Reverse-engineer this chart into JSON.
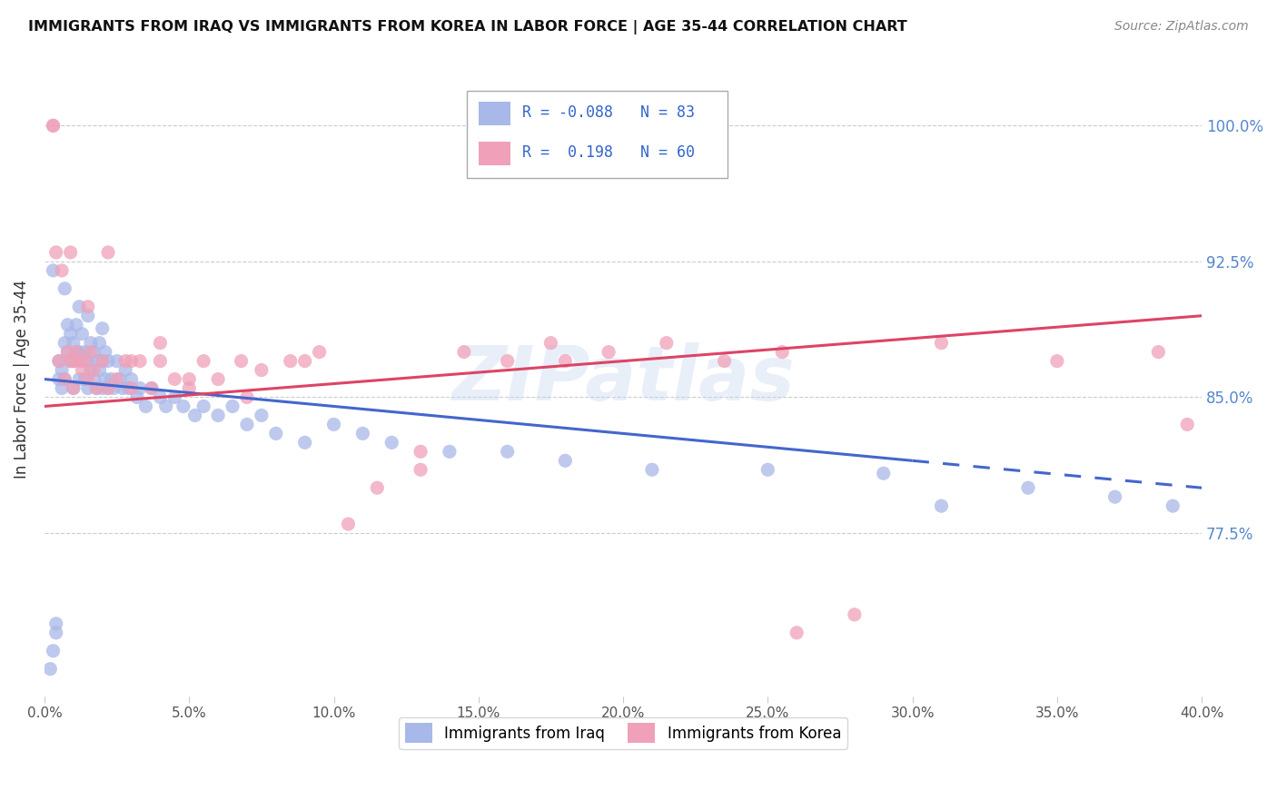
{
  "title": "IMMIGRANTS FROM IRAQ VS IMMIGRANTS FROM KOREA IN LABOR FORCE | AGE 35-44 CORRELATION CHART",
  "source": "Source: ZipAtlas.com",
  "legend_iraq_label": "Immigrants from Iraq",
  "legend_korea_label": "Immigrants from Korea",
  "iraq_R": -0.088,
  "iraq_N": 83,
  "korea_R": 0.198,
  "korea_N": 60,
  "iraq_color": "#a8b8e8",
  "korea_color": "#f0a0b8",
  "iraq_line_color": "#4466cc",
  "korea_line_color": "#dd4466",
  "background_color": "#ffffff",
  "watermark": "ZIPatlas",
  "xlim": [
    0.0,
    0.4
  ],
  "ylim": [
    0.685,
    1.035
  ],
  "ytick_labels": [
    "100.0%",
    "92.5%",
    "85.0%",
    "77.5%"
  ],
  "ytick_values": [
    1.0,
    0.925,
    0.85,
    0.775
  ],
  "iraq_x": [
    0.002,
    0.003,
    0.004,
    0.004,
    0.005,
    0.005,
    0.006,
    0.006,
    0.007,
    0.007,
    0.008,
    0.008,
    0.009,
    0.009,
    0.01,
    0.01,
    0.01,
    0.011,
    0.011,
    0.012,
    0.012,
    0.013,
    0.013,
    0.014,
    0.014,
    0.015,
    0.015,
    0.016,
    0.016,
    0.017,
    0.017,
    0.018,
    0.018,
    0.019,
    0.019,
    0.02,
    0.02,
    0.021,
    0.021,
    0.022,
    0.022,
    0.023,
    0.024,
    0.025,
    0.026,
    0.027,
    0.028,
    0.029,
    0.03,
    0.032,
    0.033,
    0.035,
    0.037,
    0.04,
    0.042,
    0.045,
    0.048,
    0.052,
    0.055,
    0.06,
    0.065,
    0.07,
    0.075,
    0.08,
    0.09,
    0.1,
    0.11,
    0.12,
    0.14,
    0.16,
    0.18,
    0.21,
    0.25,
    0.29,
    0.31,
    0.34,
    0.37,
    0.39,
    0.003,
    0.007,
    0.012,
    0.015,
    0.02
  ],
  "iraq_y": [
    0.7,
    0.71,
    0.72,
    0.725,
    0.86,
    0.87,
    0.855,
    0.865,
    0.86,
    0.88,
    0.875,
    0.89,
    0.87,
    0.885,
    0.855,
    0.87,
    0.88,
    0.875,
    0.89,
    0.86,
    0.875,
    0.87,
    0.885,
    0.86,
    0.875,
    0.855,
    0.87,
    0.865,
    0.88,
    0.86,
    0.875,
    0.855,
    0.87,
    0.865,
    0.88,
    0.855,
    0.87,
    0.86,
    0.875,
    0.855,
    0.87,
    0.86,
    0.855,
    0.87,
    0.86,
    0.855,
    0.865,
    0.855,
    0.86,
    0.85,
    0.855,
    0.845,
    0.855,
    0.85,
    0.845,
    0.85,
    0.845,
    0.84,
    0.845,
    0.84,
    0.845,
    0.835,
    0.84,
    0.83,
    0.825,
    0.835,
    0.83,
    0.825,
    0.82,
    0.82,
    0.815,
    0.81,
    0.81,
    0.808,
    0.79,
    0.8,
    0.795,
    0.79,
    0.92,
    0.91,
    0.9,
    0.895,
    0.888
  ],
  "korea_x": [
    0.003,
    0.003,
    0.004,
    0.005,
    0.006,
    0.007,
    0.008,
    0.009,
    0.01,
    0.01,
    0.011,
    0.012,
    0.013,
    0.014,
    0.015,
    0.016,
    0.017,
    0.018,
    0.02,
    0.022,
    0.025,
    0.028,
    0.03,
    0.033,
    0.037,
    0.04,
    0.045,
    0.05,
    0.055,
    0.06,
    0.068,
    0.075,
    0.085,
    0.095,
    0.105,
    0.115,
    0.13,
    0.145,
    0.16,
    0.175,
    0.195,
    0.215,
    0.235,
    0.255,
    0.28,
    0.31,
    0.35,
    0.385,
    0.395,
    0.009,
    0.015,
    0.022,
    0.03,
    0.04,
    0.05,
    0.07,
    0.09,
    0.13,
    0.18,
    0.26
  ],
  "korea_y": [
    1.0,
    1.0,
    0.93,
    0.87,
    0.92,
    0.86,
    0.875,
    0.87,
    0.855,
    0.87,
    0.875,
    0.87,
    0.865,
    0.87,
    0.86,
    0.875,
    0.865,
    0.855,
    0.87,
    0.855,
    0.86,
    0.87,
    0.855,
    0.87,
    0.855,
    0.87,
    0.86,
    0.855,
    0.87,
    0.86,
    0.87,
    0.865,
    0.87,
    0.875,
    0.78,
    0.8,
    0.81,
    0.875,
    0.87,
    0.88,
    0.875,
    0.88,
    0.87,
    0.875,
    0.73,
    0.88,
    0.87,
    0.875,
    0.835,
    0.93,
    0.9,
    0.93,
    0.87,
    0.88,
    0.86,
    0.85,
    0.87,
    0.82,
    0.87,
    0.72
  ],
  "iraq_line_solid_end": 0.3,
  "iraq_line_x_start": 0.0,
  "iraq_line_x_end": 0.4,
  "korea_line_x_start": 0.0,
  "korea_line_x_end": 0.4
}
